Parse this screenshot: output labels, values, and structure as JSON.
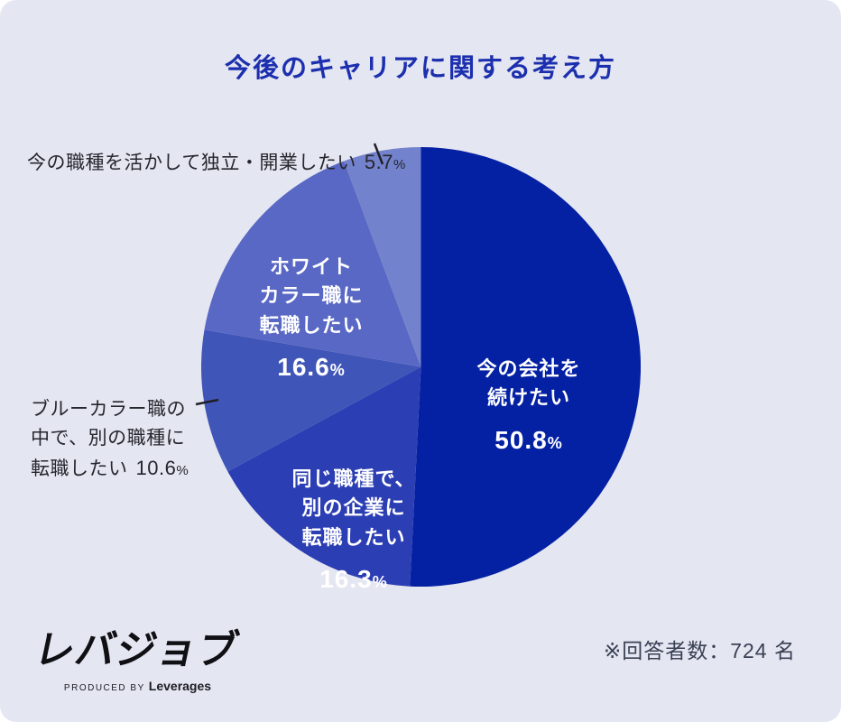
{
  "page": {
    "respondents_note": "※回答者数：724 名",
    "logo": {
      "name": "レバジョブ",
      "produced_by": "PRODUCED BY",
      "company": "Leverages"
    }
  },
  "chart_data": {
    "type": "pie",
    "title": "今後のキャリアに関する考え方",
    "unit": "%",
    "start_angle_deg": 0,
    "direction": "clockwise",
    "respondents": 724,
    "legend": "none",
    "slices": [
      {
        "label": "今の会社を続けたい",
        "label_lines": "今の会社を\n続けたい",
        "value": 50.8,
        "value_text": "50.8",
        "color": "#0521a3",
        "label_position": "inside"
      },
      {
        "label": "同じ職種で、別の企業に転職したい",
        "label_lines": "同じ職種で、\n別の企業に\n転職したい",
        "value": 16.3,
        "value_text": "16.3",
        "color": "#2c3eb3",
        "label_position": "inside"
      },
      {
        "label": "ブルーカラー職の中で、別の職種に転職したい",
        "label_lines": "ブルーカラー職の\n中で、別の職種に\n転職したい",
        "value": 10.6,
        "value_text": "10.6",
        "color": "#4055b8",
        "label_position": "outside"
      },
      {
        "label": "ホワイトカラー職に転職したい",
        "label_lines": "ホワイト\nカラー職に\n転職したい",
        "value": 16.6,
        "value_text": "16.6",
        "color": "#5968c4",
        "label_position": "inside"
      },
      {
        "label": "今の職種を活かして独立・開業したい",
        "label_lines": "今の職種を活かして独立・開業したい",
        "value": 5.7,
        "value_text": "5.7",
        "color": "#7382cc",
        "label_position": "outside"
      }
    ],
    "colors": {
      "background": "#e4e6f2",
      "title": "#1c2fae",
      "inside_label": "#ffffff",
      "outside_label": "#26262c",
      "leader_line": "#1f1f26",
      "footer_text": "#3a4054"
    }
  }
}
